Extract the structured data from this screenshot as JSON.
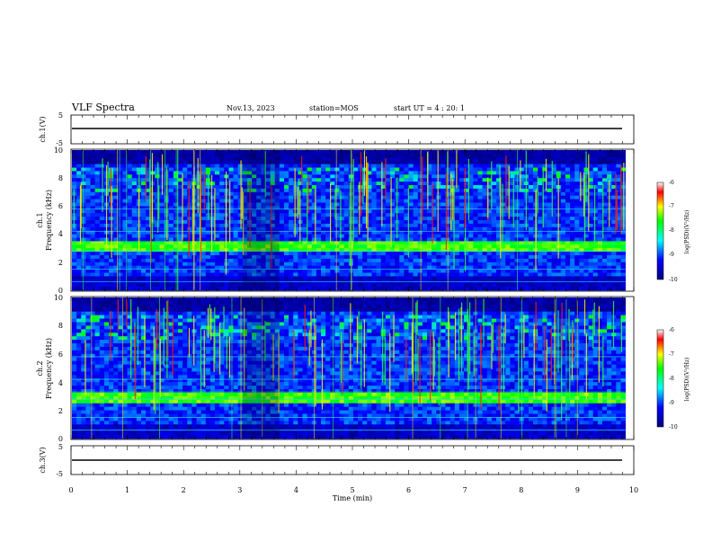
{
  "header": {
    "title": "VLF Spectra",
    "date": "Nov.13, 2023",
    "station": "station=MOS",
    "start": "start UT =  4 : 20: 1"
  },
  "chart_data": [
    {
      "type": "line",
      "panel": "ch1-waveform",
      "ylabel": "ch.1(V)",
      "yticks": [
        "5",
        "-5"
      ],
      "ylim": [
        -5,
        5
      ],
      "x": [
        0,
        9.85
      ],
      "y": [
        0,
        0
      ]
    },
    {
      "type": "heatmap",
      "panel": "ch1-spectrogram",
      "ylabel_line1": "ch.1",
      "ylabel_line2": "Frequency (kHz)",
      "yticks": [
        "0",
        "2",
        "4",
        "6",
        "8",
        "10"
      ],
      "ylim": [
        0,
        10
      ],
      "xlim": [
        0,
        10
      ],
      "colorbar": {
        "label": "log(PSD)(V²/Hz)",
        "ticks": [
          "-6",
          "-7",
          "-8",
          "-9",
          "-10"
        ],
        "range": [
          -10,
          -6
        ]
      }
    },
    {
      "type": "heatmap",
      "panel": "ch2-spectrogram",
      "ylabel_line1": "ch.2",
      "ylabel_line2": "Frequency (kHz)",
      "yticks": [
        "0",
        "2",
        "4",
        "6",
        "8",
        "10"
      ],
      "ylim": [
        0,
        10
      ],
      "xlim": [
        0,
        10
      ],
      "colorbar": {
        "label": "log(PSD)(V²/Hz)",
        "ticks": [
          "-6",
          "-7",
          "-8",
          "-9",
          "-10"
        ],
        "range": [
          -10,
          -6
        ]
      }
    },
    {
      "type": "line",
      "panel": "ch3-waveform",
      "ylabel": "ch.3(V)",
      "yticks": [
        "5",
        "-5"
      ],
      "ylim": [
        -5,
        5
      ],
      "x": [
        0,
        9.85
      ],
      "y": [
        0,
        0
      ]
    }
  ],
  "xaxis": {
    "label": "Time (min)",
    "ticks": [
      "0",
      "1",
      "2",
      "3",
      "4",
      "5",
      "6",
      "7",
      "8",
      "9",
      "10"
    ],
    "xlim": [
      0,
      10
    ]
  },
  "colors": {
    "low": "#000080",
    "mid": "#00ff00",
    "high": "#ff0000",
    "background": "#ffffff"
  }
}
